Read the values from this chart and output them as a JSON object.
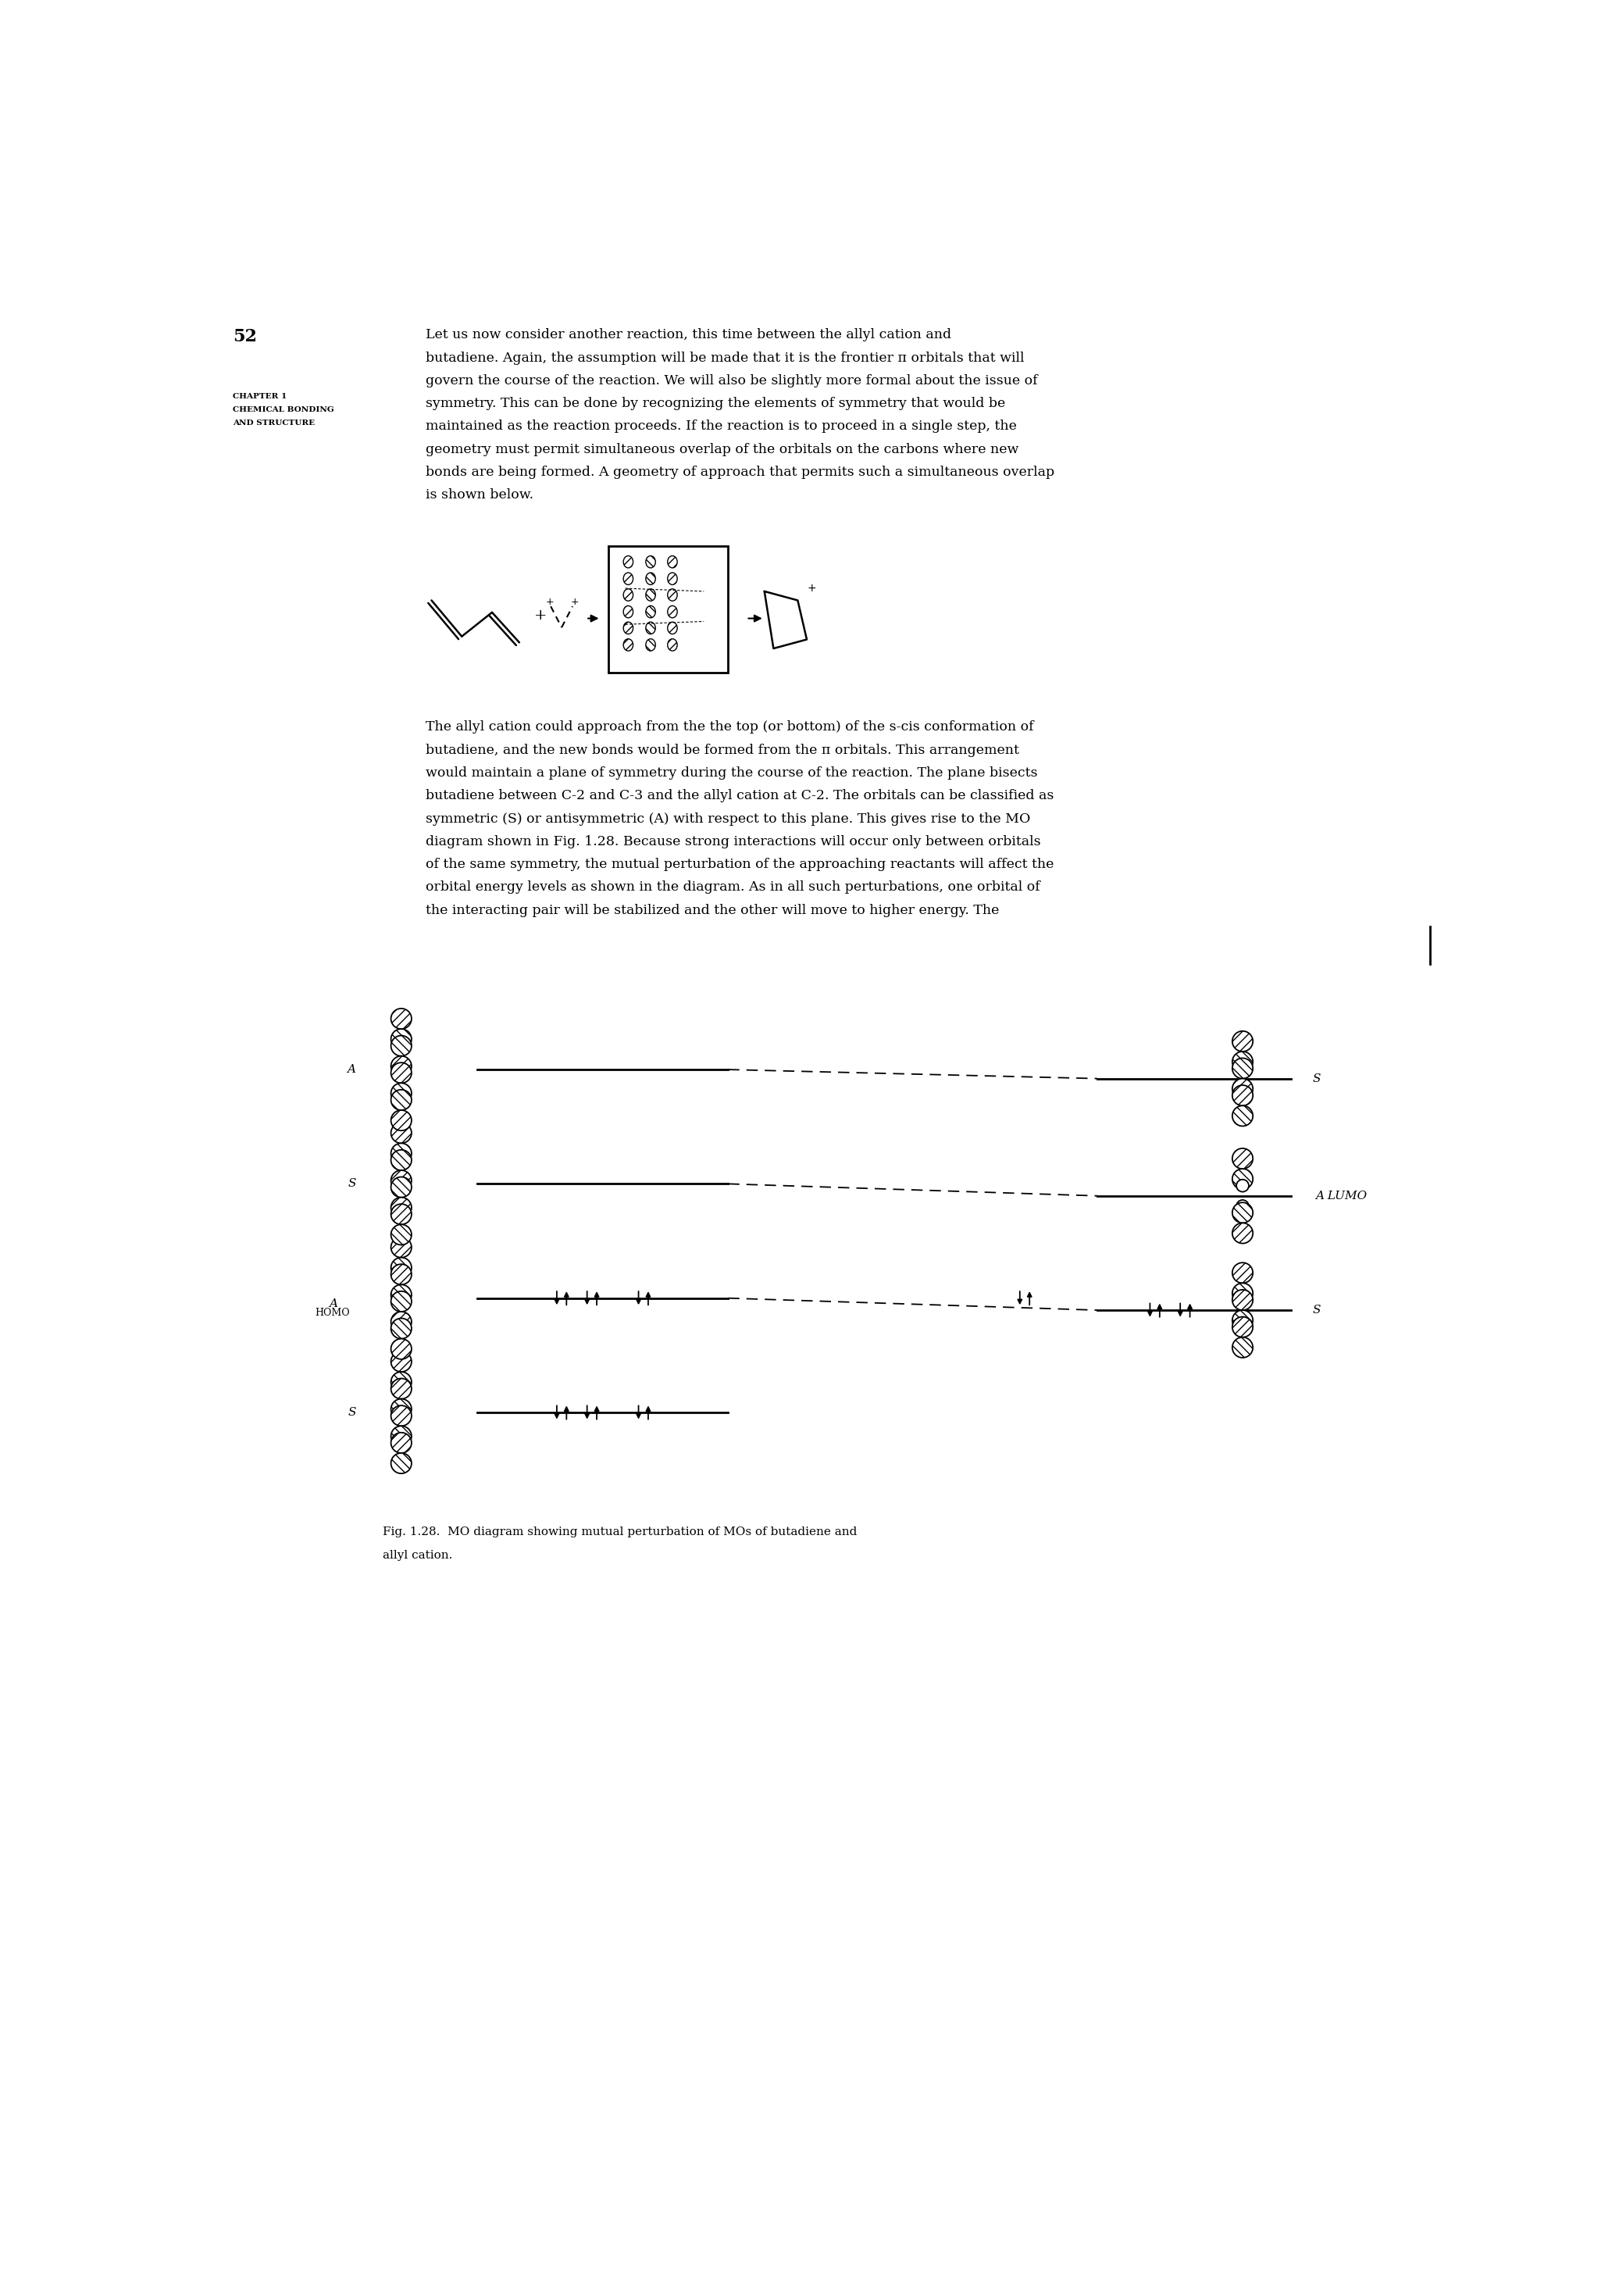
{
  "page_number": "52",
  "sidebar_line1": "CHAPTER 1",
  "sidebar_line2": "CHEMICAL BONDING",
  "sidebar_line3": "AND STRUCTURE",
  "para1_lines": [
    "Let us now consider another reaction, this time between the allyl cation and",
    "butadiene. Again, the assumption will be made that it is the frontier π orbitals that will",
    "govern the course of the reaction. We will also be slightly more formal about the issue of",
    "symmetry. This can be done by recognizing the elements of symmetry that would be",
    "maintained as the reaction proceeds. If the reaction is to proceed in a single step, the",
    "geometry must permit simultaneous overlap of the orbitals on the carbons where new",
    "bonds are being formed. A geometry of approach that permits such a simultaneous overlap",
    "is shown below."
  ],
  "para2_lines": [
    "The allyl cation could approach from the the top (or bottom) of the s-cis conformation of",
    "butadiene, and the new bonds would be formed from the π orbitals. This arrangement",
    "would maintain a plane of symmetry during the course of the reaction. The plane bisects",
    "butadiene between C-2 and C-3 and the allyl cation at C-2. The orbitals can be classified as",
    "symmetric (S) or antisymmetric (A) with respect to this plane. This gives rise to the MO",
    "diagram shown in Fig. 1.28. Because strong interactions will occur only between orbitals",
    "of the same symmetry, the mutual perturbation of the approaching reactants will affect the",
    "orbital energy levels as shown in the diagram. As in all such perturbations, one orbital of",
    "the interacting pair will be stabilized and the other will move to higher energy. The"
  ],
  "fig_caption_line1": "Fig. 1.28.  MO diagram showing mutual perturbation of MOs of butadiene and",
  "fig_caption_line2": "allyl cation.",
  "background_color": "#ffffff",
  "text_color": "#000000"
}
